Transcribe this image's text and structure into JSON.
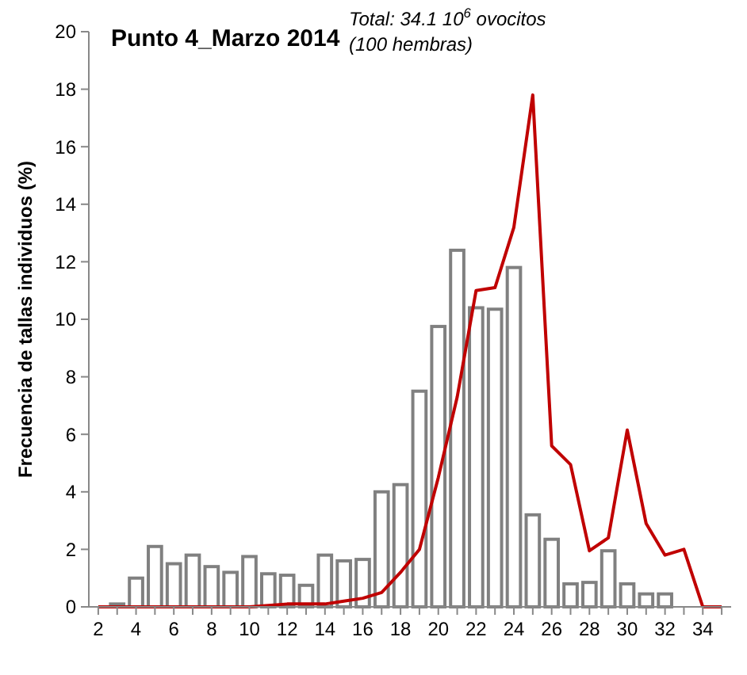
{
  "chart_data": {
    "type": "bar",
    "title": "Punto 4_Marzo 2014",
    "ylabel": "Frecuencia de tallas individuos (%)",
    "annotations": [
      "Total: 34.1 10$^{6}$ ovocitos",
      "(100 hembras)"
    ],
    "categories": [
      "2",
      null,
      "4",
      null,
      "6",
      null,
      "8",
      null,
      "10",
      null,
      "12",
      null,
      "14",
      null,
      "16",
      null,
      "18",
      null,
      "20",
      null,
      "22",
      null,
      "24",
      null,
      "26",
      null,
      "28",
      null,
      "30",
      null,
      "32",
      null,
      "34",
      null
    ],
    "series": [
      {
        "color": "#808080",
        "values": [
          0,
          0.1,
          1.0,
          2.1,
          1.5,
          1.8,
          1.4,
          1.2,
          1.75,
          1.15,
          1.1,
          0.75,
          1.8,
          1.6,
          1.65,
          4.0,
          4.25,
          7.5,
          9.75,
          12.4,
          10.4,
          10.35,
          11.8,
          3.2,
          2.35,
          0.8,
          0.85,
          1.95,
          0.8,
          0.45,
          0.45,
          0,
          0,
          0
        ]
      },
      {
        "type": "line",
        "color": "#c00000",
        "values": [
          0,
          0,
          0,
          0,
          0,
          0,
          0,
          0,
          0,
          0.05,
          0.1,
          0.1,
          0.1,
          0.2,
          0.3,
          0.5,
          1.2,
          2.0,
          4.5,
          7.3,
          11.0,
          11.1,
          13.2,
          17.8,
          5.6,
          4.95,
          1.95,
          2.4,
          6.15,
          2.9,
          1.8,
          2.0,
          0,
          0
        ]
      }
    ],
    "ylim": [
      0,
      20
    ],
    "yticks": [
      0,
      2,
      4,
      6,
      8,
      10,
      12,
      14,
      16,
      18,
      20
    ],
    "grid": false
  }
}
